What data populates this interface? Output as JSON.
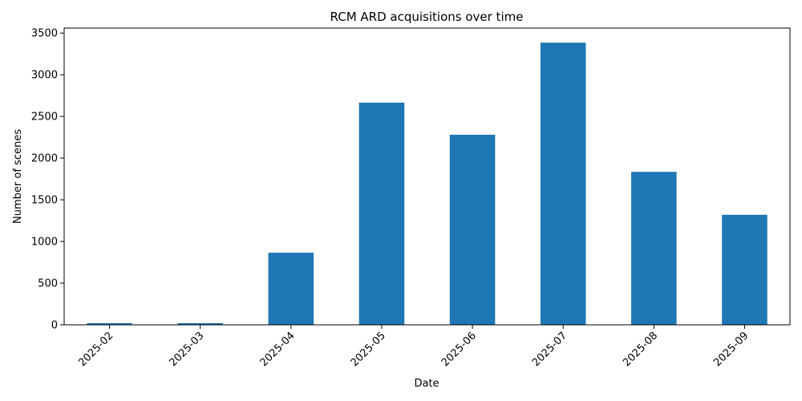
{
  "chart_data": {
    "type": "bar",
    "title": "RCM ARD acquisitions over time",
    "xlabel": "Date",
    "ylabel": "Number of scenes",
    "categories": [
      "2025-02",
      "2025-03",
      "2025-04",
      "2025-05",
      "2025-06",
      "2025-07",
      "2025-08",
      "2025-09"
    ],
    "values": [
      20,
      20,
      865,
      2665,
      2280,
      3385,
      1835,
      1320
    ],
    "ylim": [
      0,
      3560
    ],
    "yticks": [
      0,
      500,
      1000,
      1500,
      2000,
      2500,
      3000,
      3500
    ],
    "bar_color": "#1f77b4",
    "grid": false,
    "legend": "none",
    "xtick_rotation": 45
  }
}
